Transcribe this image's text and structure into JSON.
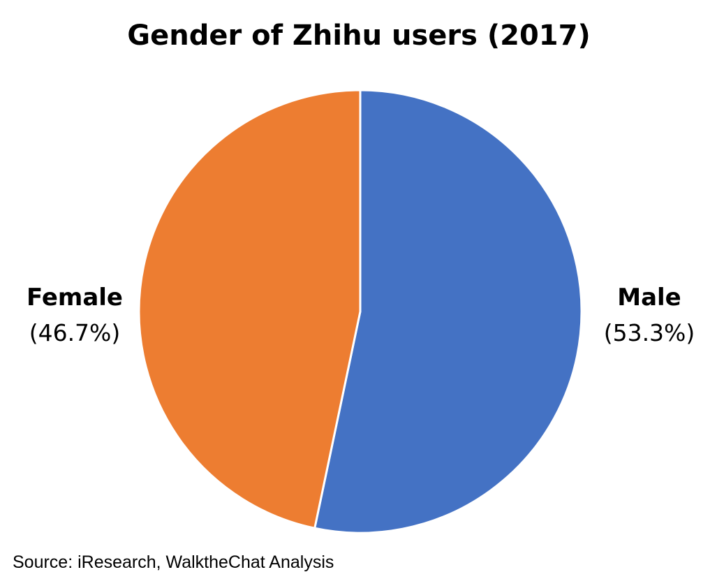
{
  "chart_data": {
    "type": "pie",
    "title": "Gender of Zhihu users (2017)",
    "categories": [
      "Male",
      "Female"
    ],
    "values": [
      53.3,
      46.7
    ],
    "value_labels": [
      "(53.3%)",
      "(46.7%)"
    ],
    "colors": [
      "#4472C4",
      "#ED7D31"
    ],
    "start": "12 o'clock",
    "direction": "clockwise",
    "legend": "none"
  },
  "source": "Source: iResearch, WalktheChat Analysis"
}
